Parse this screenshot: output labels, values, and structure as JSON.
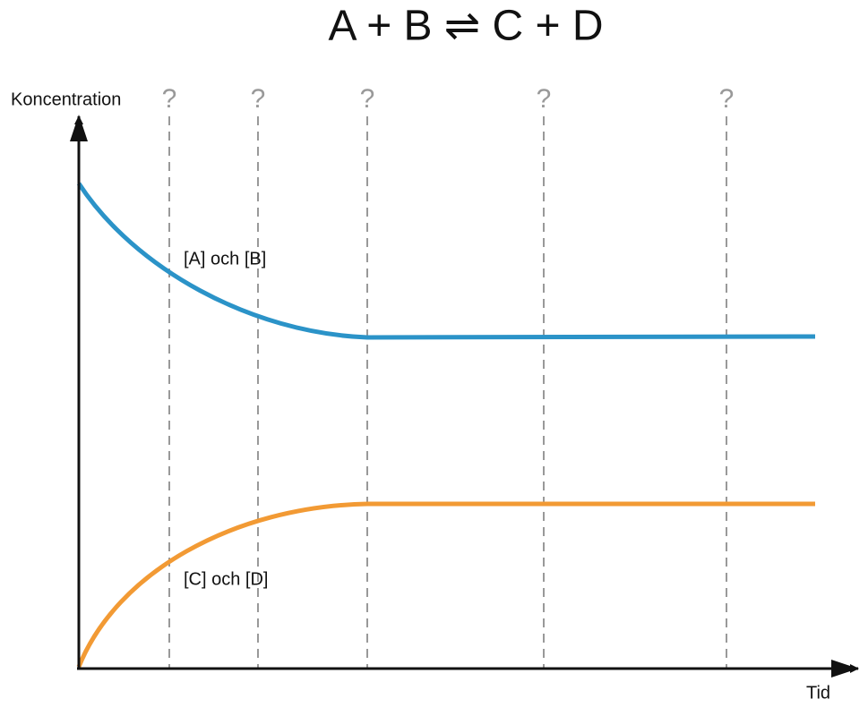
{
  "title": "A + B ⇌ C + D",
  "y_axis_label": "Koncentration",
  "x_axis_label": "Tid",
  "markers": [
    "?",
    "?",
    "?",
    "?",
    "?"
  ],
  "curves": [
    {
      "label": "[A] och [B]"
    },
    {
      "label": "[C] och [D]"
    }
  ]
}
